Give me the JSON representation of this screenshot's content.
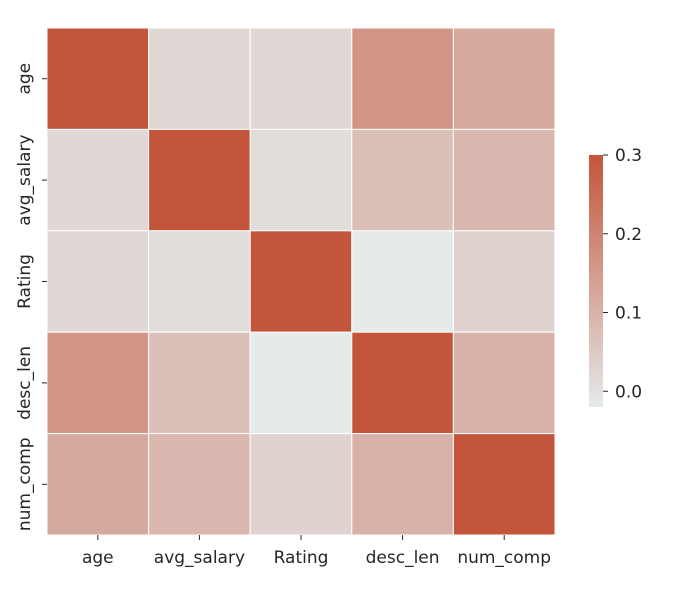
{
  "chart_data": {
    "type": "heatmap",
    "title": "",
    "xlabel": "",
    "ylabel": "",
    "x_categories": [
      "age",
      "avg_salary",
      "Rating",
      "desc_len",
      "num_comp"
    ],
    "y_categories": [
      "age",
      "avg_salary",
      "Rating",
      "desc_len",
      "num_comp"
    ],
    "values": [
      [
        0.3,
        0.02,
        0.02,
        0.16,
        0.12
      ],
      [
        0.02,
        0.3,
        0.01,
        0.07,
        0.09
      ],
      [
        0.02,
        0.01,
        0.3,
        -0.02,
        0.03
      ],
      [
        0.16,
        0.07,
        -0.02,
        0.3,
        0.1
      ],
      [
        0.12,
        0.09,
        0.03,
        0.1,
        0.3
      ]
    ],
    "colorbar": {
      "vmin": -0.02,
      "vmax": 0.3,
      "ticks": [
        "0.0",
        "0.1",
        "0.2",
        "0.3"
      ],
      "tick_values": [
        0.0,
        0.1,
        0.2,
        0.3
      ]
    },
    "colors": {
      "low": "#e5eaeb",
      "high": "#c3553a"
    },
    "grid_lines": "white"
  }
}
